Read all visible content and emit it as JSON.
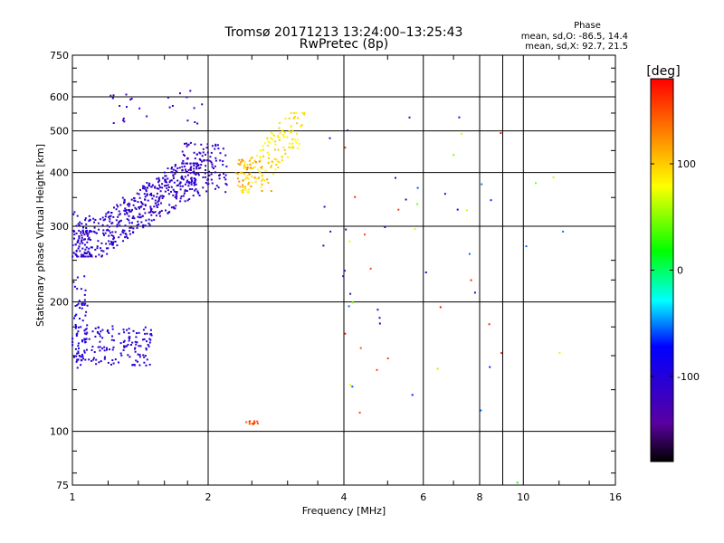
{
  "chart_data": {
    "type": "scatter",
    "title": "Tromsø 20171213 13:24:00–13:25:43",
    "subtitle": "RwPretec (8p)",
    "xlabel": "Frequency [MHz]",
    "ylabel": "Stationary phase Virtual Height [km]",
    "x_scale": "log",
    "y_scale": "log",
    "xlim": [
      1,
      16
    ],
    "ylim": [
      75,
      750
    ],
    "x_ticks": [
      1,
      2,
      4,
      6,
      8,
      10,
      16
    ],
    "x_tick_labels": [
      "1",
      "2",
      "4",
      "6",
      "8",
      "10",
      "16"
    ],
    "x_extra_gridlines": [
      9
    ],
    "y_ticks": [
      75,
      100,
      200,
      300,
      400,
      500,
      600,
      750
    ],
    "y_tick_labels": [
      "75",
      "100",
      "200",
      "300",
      "400",
      "500",
      "600",
      "750"
    ],
    "grid": true,
    "stats_title": "Phase",
    "stats_lines": [
      "mean, sd,O: -86.5, 14.4",
      "mean, sd,X:  92.7, 21.5"
    ],
    "colorbar": {
      "label": "[deg]",
      "range": [
        -180,
        180
      ],
      "ticks": [
        100,
        0,
        -100
      ],
      "tick_labels": [
        "100",
        "0",
        "-100"
      ],
      "colormap": [
        "#000000",
        "#5a00a0",
        "#0000ff",
        "#00ffff",
        "#00ff00",
        "#ffff00",
        "#ff8000",
        "#ff0000"
      ]
    },
    "groups": [
      {
        "phase": -95,
        "n": 60,
        "f": [
          1.0,
          1.08
        ],
        "h": [
          140,
          230
        ]
      },
      {
        "phase": -105,
        "n": 150,
        "f": [
          1.02,
          1.5
        ],
        "h": [
          142,
          176
        ]
      },
      {
        "phase": -100,
        "n": 40,
        "f": [
          1.0,
          1.1
        ],
        "h": [
          255,
          330
        ]
      },
      {
        "phase": -110,
        "n": 480,
        "f": [
          1.0,
          1.9
        ],
        "h": [
          255,
          420
        ],
        "curve": {
          "f0": 1.0,
          "h0": 260,
          "f1": 1.9,
          "h1": 400
        }
      },
      {
        "phase": -115,
        "n": 120,
        "f": [
          1.75,
          2.2
        ],
        "h": [
          360,
          470
        ]
      },
      {
        "phase": -115,
        "n": 25,
        "f": [
          1.2,
          1.95
        ],
        "h": [
          520,
          620
        ]
      },
      {
        "phase": 90,
        "n": 140,
        "f": [
          2.35,
          3.2
        ],
        "h": [
          360,
          550
        ],
        "curve": {
          "f0": 2.35,
          "h0": 365,
          "f1": 3.2,
          "h1": 520
        }
      },
      {
        "phase": 120,
        "n": 35,
        "f": [
          2.3,
          2.8
        ],
        "h": [
          360,
          430
        ]
      },
      {
        "phase": 150,
        "n": 12,
        "f": [
          2.4,
          2.6
        ],
        "h": [
          104,
          106
        ]
      },
      {
        "phase": -120,
        "n": 20,
        "f": [
          3.3,
          8.0
        ],
        "h": [
          180,
          600
        ]
      },
      {
        "phase": 160,
        "n": 15,
        "f": [
          4.0,
          9.0
        ],
        "h": [
          110,
          560
        ]
      },
      {
        "phase": 60,
        "n": 12,
        "f": [
          4.0,
          13.0
        ],
        "h": [
          100,
          500
        ]
      },
      {
        "phase": -60,
        "n": 12,
        "f": [
          4.0,
          13.0
        ],
        "h": [
          100,
          500
        ]
      },
      {
        "phase": 30,
        "n": 1,
        "f": [
          9.7,
          9.7
        ],
        "h": [
          76,
          76
        ]
      }
    ]
  }
}
